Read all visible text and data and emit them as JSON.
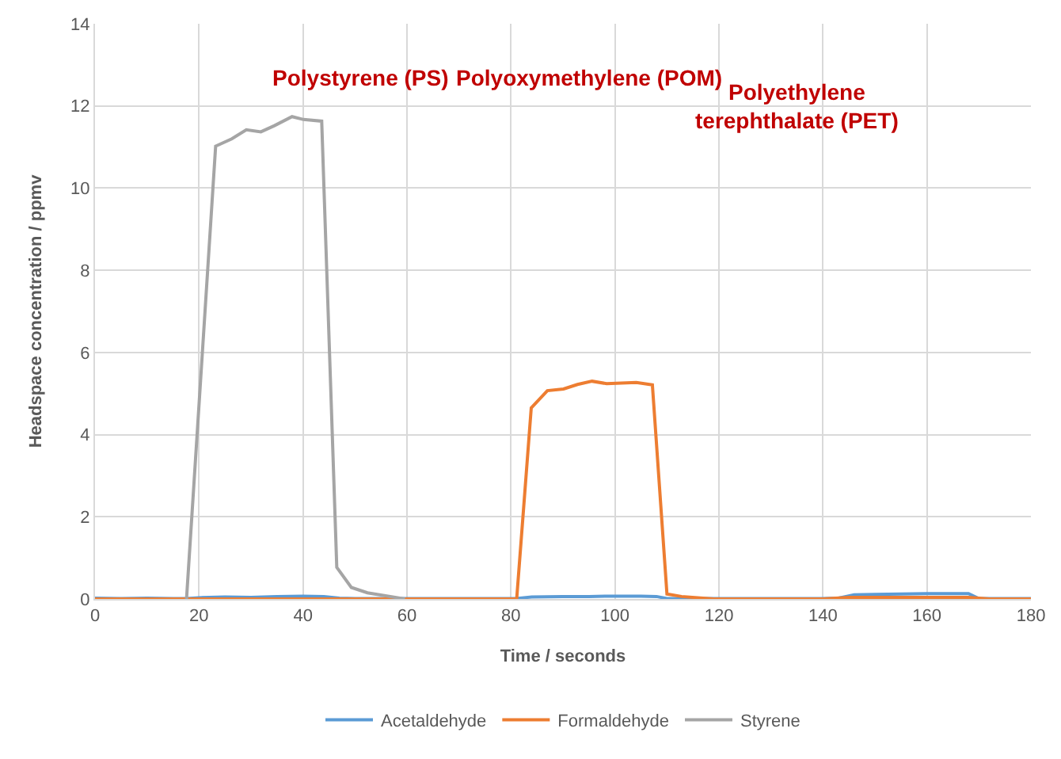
{
  "chart_data": {
    "type": "line",
    "xlabel": "Time / seconds",
    "ylabel": "Headspace concentration / ppmv",
    "xlim": [
      0,
      180
    ],
    "xticks": [
      0,
      20,
      40,
      60,
      80,
      100,
      120,
      140,
      160,
      180
    ],
    "ylim": [
      0,
      14
    ],
    "yticks": [
      0,
      2,
      4,
      6,
      8,
      10,
      12,
      14
    ],
    "grid": true,
    "legend": "bottom",
    "series": [
      {
        "name": "Acetaldehyde",
        "color": "#5b9bd5",
        "x": [
          0,
          5,
          10,
          15,
          17.6,
          20,
          25,
          30,
          35,
          40,
          44,
          47,
          50,
          60,
          70,
          80,
          81,
          84,
          90,
          95,
          100,
          105,
          108,
          110,
          120,
          130,
          140,
          143,
          146,
          150,
          155,
          160,
          165,
          168,
          170,
          180
        ],
        "values": [
          0.02,
          0.01,
          0.02,
          0.01,
          0.01,
          0.03,
          0.05,
          0.04,
          0.06,
          0.07,
          0.06,
          0.02,
          0.01,
          0.01,
          0.01,
          0.01,
          0.01,
          0.05,
          0.06,
          0.06,
          0.07,
          0.07,
          0.06,
          0.01,
          0.01,
          0.01,
          0.01,
          0.02,
          0.1,
          0.11,
          0.12,
          0.13,
          0.13,
          0.13,
          0.01,
          0.01
        ]
      },
      {
        "name": "Formaldehyde",
        "color": "#ed7d31",
        "x": [
          0,
          81.1,
          83.9,
          87,
          90.1,
          92.8,
          95.6,
          98.4,
          104.1,
          107.2,
          110,
          112.8,
          119,
          140,
          145,
          168,
          172,
          180
        ],
        "values": [
          0,
          0,
          4.65,
          5.07,
          5.11,
          5.22,
          5.3,
          5.24,
          5.27,
          5.21,
          0.12,
          0.06,
          0,
          0,
          0.04,
          0.04,
          0,
          0
        ]
      },
      {
        "name": "Styrene",
        "color": "#a5a5a5",
        "x": [
          17.6,
          23.2,
          26.3,
          29.1,
          31.9,
          34.5,
          37.9,
          40.1,
          43.6,
          46.5,
          49.3,
          52.4,
          59.6
        ],
        "values": [
          0,
          11.02,
          11.2,
          11.42,
          11.37,
          11.52,
          11.74,
          11.67,
          11.63,
          0.77,
          0.28,
          0.15,
          0
        ]
      }
    ],
    "annotations": [
      "Polystyrene (PS)",
      "Polyoxymethylene (POM)",
      "Polyethylene\nterephthalate (PET)"
    ]
  }
}
